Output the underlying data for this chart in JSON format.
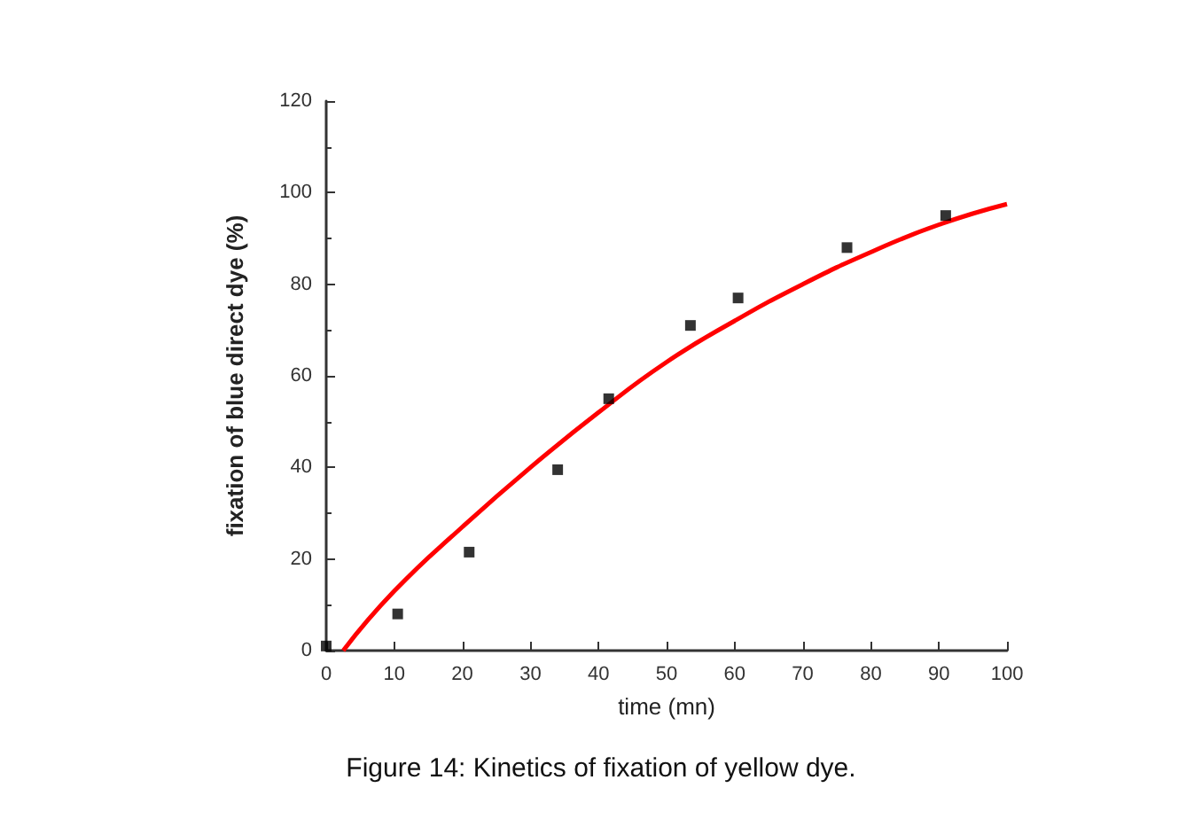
{
  "chart_data": {
    "type": "scatter",
    "title": "Figure 14: Kinetics of fixation of yellow dye.",
    "xlabel": "time (mn)",
    "ylabel": "fixation of blue direct dye (%)",
    "series": [
      {
        "color": "#000000",
        "marker": "square",
        "x": [
          0,
          10.5,
          21,
          34,
          41.5,
          53.5,
          60.5,
          76.5,
          91
        ],
        "values": [
          1,
          8,
          21.5,
          39.5,
          55,
          71,
          77,
          88,
          95
        ]
      },
      {
        "type": "line",
        "color": "#ff0000",
        "marker": "none",
        "x": [
          2.5,
          10,
          20,
          30,
          40,
          50,
          60,
          70,
          80,
          90,
          100
        ],
        "values": [
          0,
          13,
          27,
          40,
          52,
          63,
          72,
          80,
          87,
          93,
          97.5
        ]
      }
    ],
    "xlim": [
      0,
      100
    ],
    "xticks": [
      0,
      10,
      20,
      30,
      40,
      50,
      60,
      70,
      80,
      90,
      100
    ],
    "ylim": [
      0,
      120
    ],
    "yticks": [
      0,
      20,
      40,
      60,
      80,
      100,
      120
    ],
    "grid": false
  }
}
